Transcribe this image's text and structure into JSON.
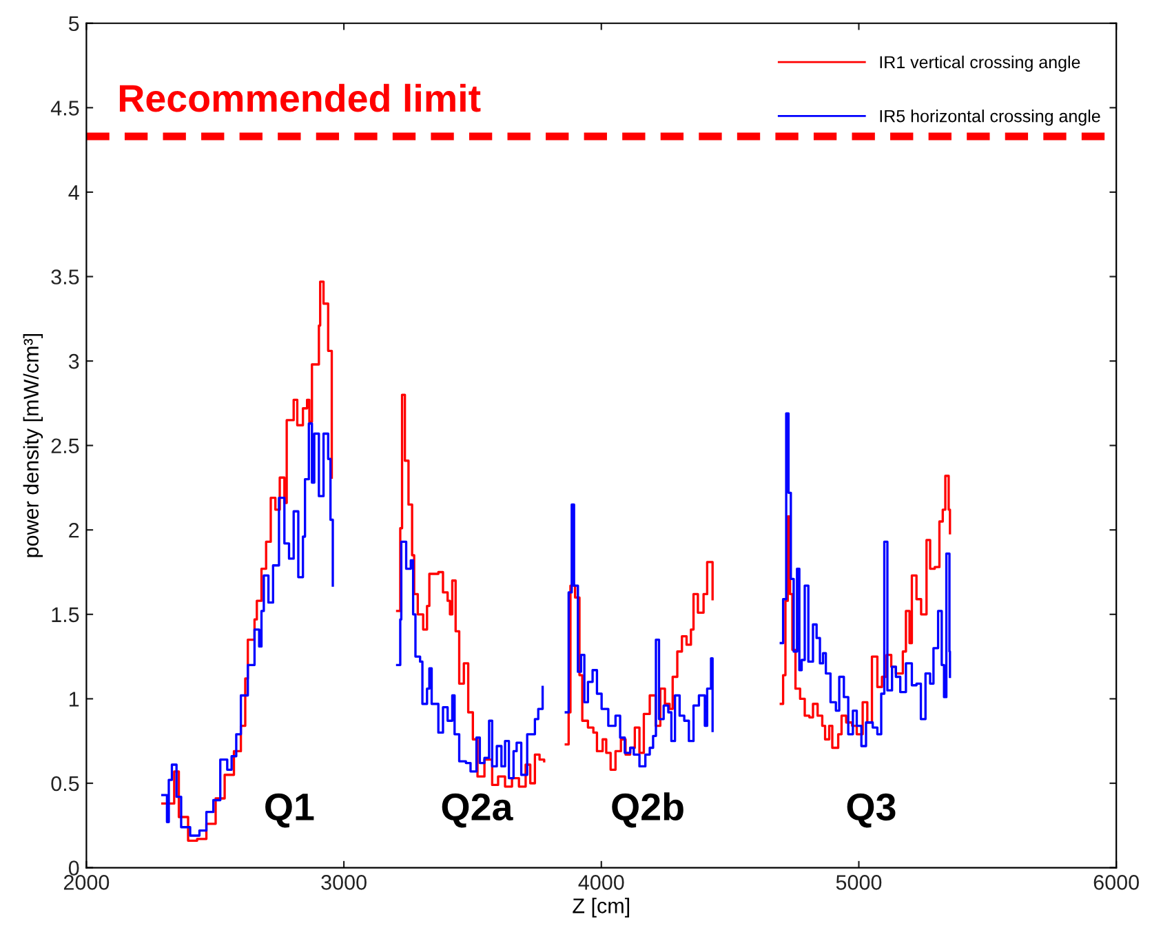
{
  "chart_data": {
    "type": "step",
    "xlabel": "Z [cm]",
    "ylabel": "power density [mW/cm³]",
    "xlim": [
      2000,
      6000
    ],
    "ylim": [
      0,
      5
    ],
    "xticks": [
      2000,
      3000,
      4000,
      5000,
      6000
    ],
    "yticks": [
      0,
      0.5,
      1,
      1.5,
      2,
      2.5,
      3,
      3.5,
      4,
      4.5,
      5
    ],
    "grid": false,
    "legend": "top right",
    "marker": "none",
    "line_style": "solid",
    "ref_lines": [
      {
        "axis": "y",
        "value": 4.33,
        "label": "Recommended limit",
        "color": "#ff0000",
        "line_style": "dashed"
      }
    ],
    "annotations": [
      "Q1",
      "Q2a",
      "Q2b",
      "Q3"
    ],
    "series": [
      {
        "name": "IR1 vertical crossing angle",
        "color": "#ff0000",
        "x": [
          2295,
          2341,
          2359,
          2395,
          2430,
          2466,
          2502,
          2537,
          2573,
          2600,
          2617,
          2627,
          2653,
          2662,
          2680,
          2698,
          2716,
          2734,
          2751,
          2769,
          2778,
          2805,
          2819,
          2841,
          2857,
          2866,
          2876,
          2903,
          2908,
          2921,
          2939,
          2953,
          3207,
          3219,
          3226,
          3237,
          3251,
          3265,
          3273,
          3287,
          3308,
          3323,
          3332,
          3367,
          3385,
          3403,
          3412,
          3421,
          3434,
          3448,
          3466,
          3483,
          3501,
          3519,
          3546,
          3576,
          3599,
          3626,
          3653,
          3680,
          3706,
          3724,
          3742,
          3760,
          3778,
          3862,
          3873,
          3880,
          3898,
          3915,
          3926,
          3948,
          3969,
          3983,
          4005,
          4019,
          4036,
          4055,
          4076,
          4094,
          4112,
          4130,
          4148,
          4165,
          4188,
          4211,
          4229,
          4247,
          4265,
          4277,
          4295,
          4313,
          4331,
          4348,
          4358,
          4375,
          4397,
          4411,
          4432,
          4697,
          4706,
          4715,
          4724,
          4733,
          4742,
          4754,
          4772,
          4790,
          4808,
          4822,
          4840,
          4858,
          4869,
          4885,
          4897,
          4920,
          4933,
          4951,
          4974,
          4992,
          5015,
          5033,
          5051,
          5072,
          5090,
          5108,
          5126,
          5144,
          5171,
          5183,
          5197,
          5206,
          5224,
          5242,
          5263,
          5277,
          5295,
          5313,
          5326,
          5336,
          5349,
          5354
        ],
        "values": [
          0.38,
          0.57,
          0.3,
          0.16,
          0.17,
          0.26,
          0.41,
          0.55,
          0.69,
          0.84,
          1.12,
          1.35,
          1.47,
          1.58,
          1.77,
          1.93,
          2.19,
          2.12,
          2.31,
          2.16,
          2.65,
          2.77,
          2.62,
          2.72,
          2.77,
          2.64,
          2.98,
          3.21,
          3.47,
          3.34,
          3.06,
          2.31,
          1.52,
          2.01,
          2.8,
          2.41,
          2.15,
          1.85,
          1.62,
          1.5,
          1.41,
          1.55,
          1.74,
          1.75,
          1.63,
          1.58,
          1.5,
          1.7,
          1.4,
          1.09,
          1.21,
          0.92,
          0.76,
          0.54,
          0.64,
          0.49,
          0.54,
          0.48,
          0.53,
          0.48,
          0.61,
          0.5,
          0.67,
          0.64,
          0.63,
          0.73,
          0.92,
          1.67,
          1.6,
          1.14,
          0.87,
          0.83,
          0.8,
          0.69,
          0.76,
          0.68,
          0.58,
          0.69,
          0.76,
          0.67,
          0.71,
          0.83,
          0.68,
          0.91,
          1.02,
          0.84,
          1.06,
          0.97,
          0.94,
          1.13,
          1.28,
          1.37,
          1.32,
          1.41,
          1.62,
          1.51,
          1.62,
          1.81,
          1.59,
          0.97,
          1.14,
          1.58,
          2.08,
          1.62,
          1.29,
          1.06,
          1.0,
          0.9,
          0.89,
          0.97,
          0.9,
          0.84,
          0.76,
          0.84,
          0.71,
          0.79,
          0.9,
          0.86,
          0.84,
          0.79,
          0.98,
          0.86,
          1.25,
          1.07,
          1.13,
          1.26,
          1.19,
          1.15,
          1.28,
          1.52,
          1.33,
          1.73,
          1.59,
          1.5,
          1.94,
          1.77,
          1.78,
          2.05,
          2.12,
          2.32,
          2.12,
          1.98
        ]
      },
      {
        "name": "IR5 horizontal crossing angle",
        "color": "#0000ff",
        "x": [
          2295,
          2313,
          2320,
          2332,
          2350,
          2368,
          2403,
          2439,
          2466,
          2493,
          2520,
          2547,
          2564,
          2582,
          2600,
          2627,
          2653,
          2671,
          2680,
          2689,
          2707,
          2725,
          2748,
          2769,
          2787,
          2805,
          2823,
          2841,
          2849,
          2864,
          2876,
          2885,
          2903,
          2921,
          2939,
          2948,
          2957,
          3207,
          3219,
          3223,
          3242,
          3260,
          3269,
          3278,
          3296,
          3305,
          3323,
          3332,
          3341,
          3367,
          3385,
          3403,
          3421,
          3430,
          3448,
          3474,
          3492,
          3515,
          3528,
          3546,
          3564,
          3576,
          3594,
          3612,
          3626,
          3641,
          3659,
          3671,
          3689,
          3712,
          3742,
          3755,
          3772,
          3862,
          3873,
          3885,
          3894,
          3909,
          3921,
          3934,
          3948,
          3966,
          3983,
          4001,
          4027,
          4055,
          4073,
          4091,
          4112,
          4126,
          4148,
          4171,
          4188,
          4201,
          4212,
          4224,
          4242,
          4260,
          4272,
          4286,
          4304,
          4322,
          4340,
          4358,
          4379,
          4402,
          4411,
          4426,
          4432,
          4697,
          4706,
          4718,
          4727,
          4736,
          4747,
          4760,
          4769,
          4778,
          4790,
          4804,
          4822,
          4836,
          4849,
          4861,
          4872,
          4890,
          4911,
          4924,
          4942,
          4959,
          4977,
          4992,
          5010,
          5028,
          5054,
          5072,
          5087,
          5099,
          5111,
          5129,
          5144,
          5161,
          5183,
          5206,
          5224,
          5241,
          5259,
          5277,
          5290,
          5308,
          5322,
          5331,
          5340,
          5352,
          5354
        ],
        "values": [
          0.43,
          0.27,
          0.52,
          0.61,
          0.42,
          0.24,
          0.19,
          0.22,
          0.33,
          0.4,
          0.64,
          0.58,
          0.66,
          0.79,
          1.02,
          1.2,
          1.41,
          1.31,
          1.52,
          1.73,
          1.57,
          1.79,
          2.19,
          1.92,
          1.83,
          2.11,
          1.72,
          1.96,
          2.3,
          2.63,
          2.28,
          2.57,
          2.2,
          2.57,
          2.42,
          2.06,
          1.67,
          1.2,
          1.47,
          1.93,
          1.77,
          1.82,
          1.5,
          1.25,
          1.22,
          0.97,
          1.06,
          1.18,
          0.97,
          0.8,
          0.95,
          0.87,
          1.02,
          0.79,
          0.63,
          0.62,
          0.57,
          0.77,
          0.62,
          0.65,
          0.87,
          0.6,
          0.72,
          0.6,
          0.75,
          0.53,
          0.69,
          0.74,
          0.55,
          0.79,
          0.88,
          0.94,
          1.07,
          0.92,
          1.63,
          2.15,
          1.67,
          1.16,
          1.26,
          0.98,
          1.1,
          1.17,
          1.03,
          0.94,
          0.84,
          0.9,
          0.77,
          0.68,
          0.71,
          0.67,
          0.6,
          0.67,
          0.71,
          0.78,
          1.35,
          0.88,
          0.96,
          0.92,
          0.75,
          1.02,
          0.9,
          0.87,
          0.75,
          0.96,
          1.02,
          0.84,
          1.06,
          1.24,
          0.81,
          1.33,
          1.59,
          2.69,
          2.22,
          1.71,
          1.28,
          1.77,
          1.17,
          1.23,
          1.67,
          1.22,
          1.44,
          1.36,
          1.21,
          1.27,
          1.15,
          0.98,
          0.93,
          1.13,
          1.01,
          0.79,
          0.93,
          0.84,
          0.72,
          0.86,
          0.83,
          0.79,
          1.03,
          1.93,
          1.05,
          1.19,
          1.13,
          1.04,
          1.21,
          1.08,
          1.09,
          0.88,
          1.15,
          1.09,
          1.3,
          1.52,
          1.2,
          1.01,
          1.86,
          1.28,
          1.13
        ]
      }
    ]
  }
}
